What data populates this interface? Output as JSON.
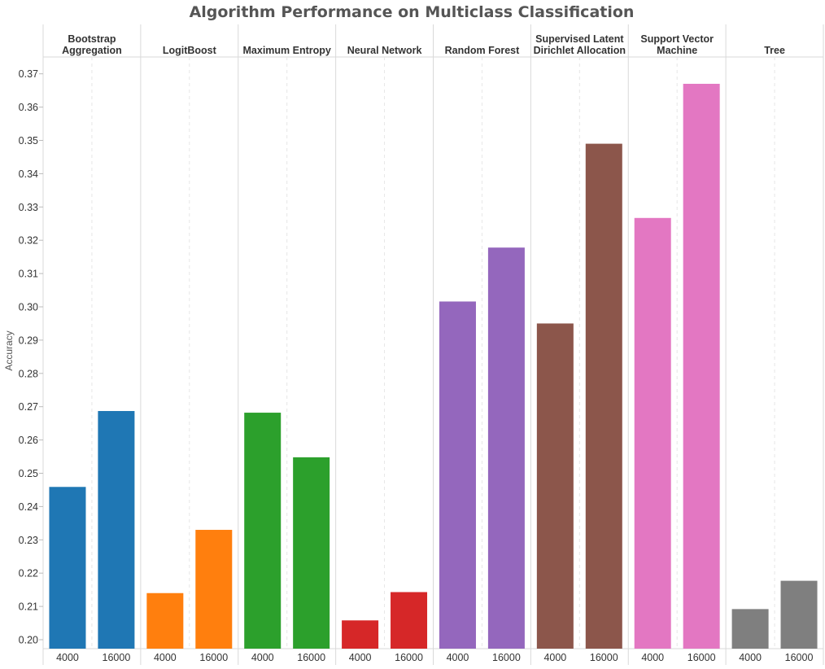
{
  "chart_data": {
    "type": "bar",
    "title": "Algorithm Performance on Multiclass Classification",
    "ylabel": "Accuracy",
    "xlabel": "",
    "ylim": [
      0.2,
      0.375
    ],
    "yticks": [
      "0.20",
      "0.21",
      "0.22",
      "0.23",
      "0.24",
      "0.25",
      "0.26",
      "0.27",
      "0.28",
      "0.29",
      "0.30",
      "0.31",
      "0.32",
      "0.33",
      "0.34",
      "0.35",
      "0.36",
      "0.37"
    ],
    "grid": false,
    "legend": "none",
    "groups": [
      {
        "label_lines": [
          "Bootstrap",
          "Aggregation"
        ],
        "color": "#1f77b4",
        "bars": [
          {
            "x": "4000",
            "value": 0.2459
          },
          {
            "x": "16000",
            "value": 0.2687
          }
        ]
      },
      {
        "label_lines": [
          "LogitBoost"
        ],
        "color": "#ff7f0e",
        "bars": [
          {
            "x": "4000",
            "value": 0.214
          },
          {
            "x": "16000",
            "value": 0.233
          }
        ]
      },
      {
        "label_lines": [
          "Maximum Entropy"
        ],
        "color": "#2ca02c",
        "bars": [
          {
            "x": "4000",
            "value": 0.2682
          },
          {
            "x": "16000",
            "value": 0.2548
          }
        ]
      },
      {
        "label_lines": [
          "Neural Network"
        ],
        "color": "#d62728",
        "bars": [
          {
            "x": "4000",
            "value": 0.2058
          },
          {
            "x": "16000",
            "value": 0.2143
          }
        ]
      },
      {
        "label_lines": [
          "Random Forest"
        ],
        "color": "#9467bd",
        "bars": [
          {
            "x": "4000",
            "value": 0.3016
          },
          {
            "x": "16000",
            "value": 0.3178
          }
        ]
      },
      {
        "label_lines": [
          "Supervised Latent",
          "Dirichlet Allocation"
        ],
        "color": "#8c564b",
        "bars": [
          {
            "x": "4000",
            "value": 0.295
          },
          {
            "x": "16000",
            "value": 0.349
          }
        ]
      },
      {
        "label_lines": [
          "Support Vector",
          "Machine"
        ],
        "color": "#e377c2",
        "bars": [
          {
            "x": "4000",
            "value": 0.3267
          },
          {
            "x": "16000",
            "value": 0.367
          }
        ]
      },
      {
        "label_lines": [
          "Tree"
        ],
        "color": "#7f7f7f",
        "bars": [
          {
            "x": "4000",
            "value": 0.2092
          },
          {
            "x": "16000",
            "value": 0.2177
          }
        ]
      }
    ]
  }
}
